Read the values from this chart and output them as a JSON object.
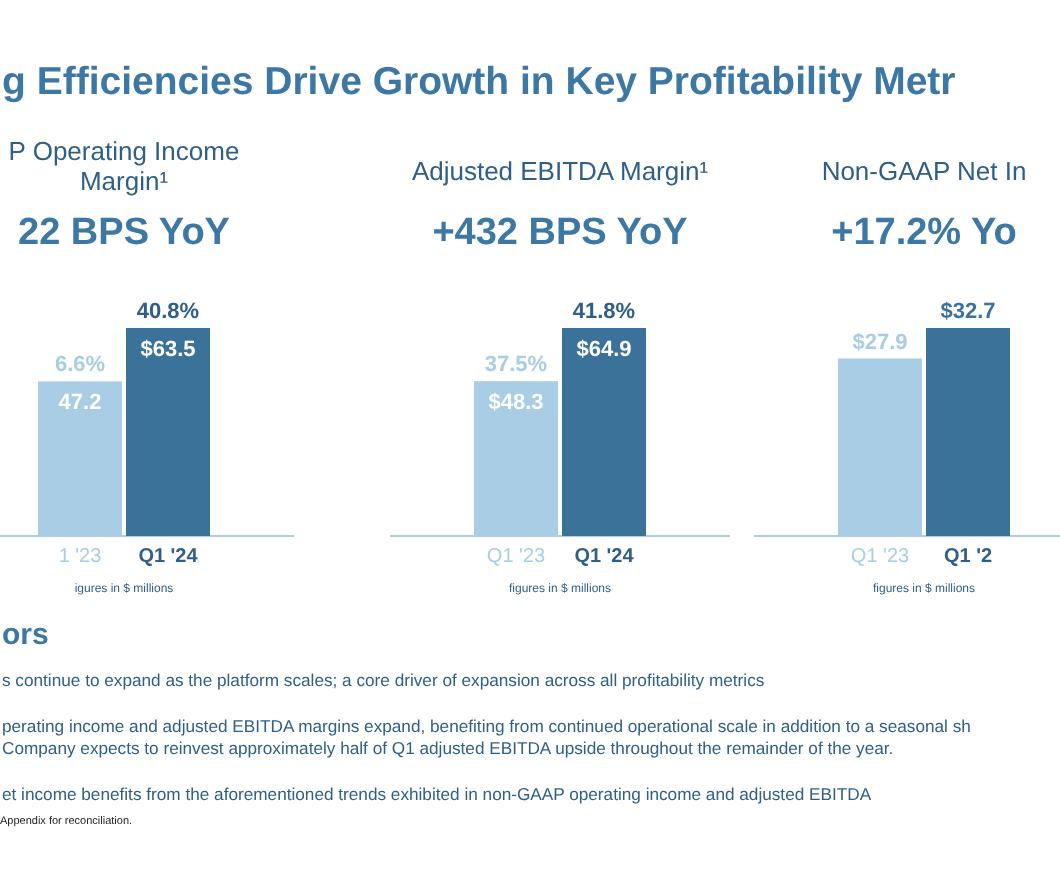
{
  "chart_data": [
    {
      "type": "bar",
      "title": "P Operating Income Margin¹",
      "subtitle": "22 BPS YoY",
      "categories": [
        "1 '23",
        "Q1 '24"
      ],
      "values": [
        47.2,
        63.5
      ],
      "colors": [
        "#a8cde4",
        "#3b7299"
      ],
      "value_labels": [
        "47.2",
        "$63.5"
      ],
      "annotations": [
        {
          "text": "6.6%",
          "x": "1 '23",
          "y": 47.2
        },
        {
          "text": "40.8%",
          "x": "Q1 '24",
          "y": 63.5
        },
        "igures in $ millions"
      ]
    },
    {
      "type": "bar",
      "title": "Adjusted EBITDA Margin¹",
      "subtitle": "+432 BPS YoY",
      "categories": [
        "Q1 '23",
        "Q1 '24"
      ],
      "values": [
        48.3,
        64.9
      ],
      "colors": [
        "#a8cde4",
        "#3b7299"
      ],
      "value_labels": [
        "$48.3",
        "$64.9"
      ],
      "annotations": [
        {
          "text": "37.5%",
          "x": "Q1 '23",
          "y": 48.3
        },
        {
          "text": "41.8%",
          "x": "Q1 '24",
          "y": 64.9
        },
        "figures in $ millions"
      ]
    },
    {
      "type": "bar",
      "title": "Non-GAAP Net In",
      "subtitle": "+17.2% Yo",
      "categories": [
        "Q1 '23",
        "Q1 '2"
      ],
      "values": [
        27.9,
        32.7
      ],
      "colors": [
        "#a8cde4",
        "#3b7299"
      ],
      "value_labels": [
        "$27.9",
        "$32.7"
      ],
      "annotations": [
        "figures in $ millions"
      ]
    },
    {
      "type": "other",
      "title": "g Efficiencies Drive Growth in Key Profitability Metr",
      "subtitle": "ors",
      "annotations": [
        "s continue to expand as the platform scales; a core driver of expansion across all profitability metrics",
        "perating income and adjusted EBITDA margins expand, benefiting from continued operational scale in addition to a seasonal sh\nCompany expects to reinvest approximately half of Q1 adjusted EBITDA upside throughout the remainder of the year.",
        "et income benefits from the aforementioned trends exhibited in non-GAAP operating income and adjusted EBITDA",
        "Appendix for reconciliation."
      ]
    }
  ]
}
